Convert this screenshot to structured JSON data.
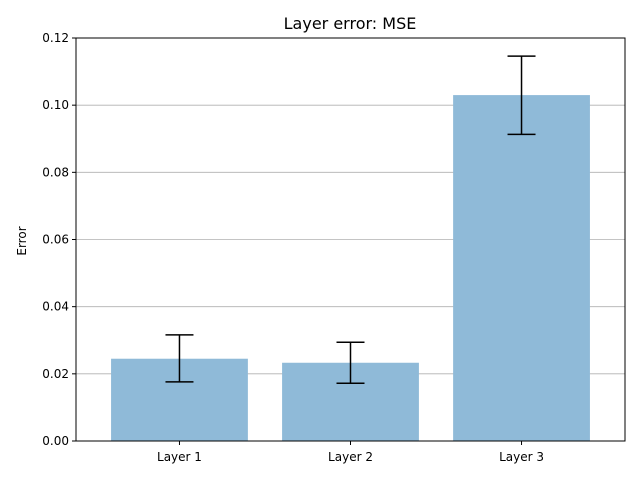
{
  "chart_data": {
    "type": "bar",
    "title": "Layer error: MSE",
    "xlabel": "",
    "ylabel": "Error",
    "categories": [
      "Layer 1",
      "Layer 2",
      "Layer 3"
    ],
    "values": [
      0.0245,
      0.0233,
      0.103
    ],
    "error_bars": [
      {
        "low": 0.0176,
        "high": 0.0316
      },
      {
        "low": 0.0172,
        "high": 0.0294
      },
      {
        "low": 0.0913,
        "high": 0.1146
      }
    ],
    "ylim": [
      0,
      0.12
    ],
    "yticks": [
      0.0,
      0.02,
      0.04,
      0.06,
      0.08,
      0.1,
      0.12
    ],
    "ytick_labels": [
      "0.00",
      "0.02",
      "0.04",
      "0.06",
      "0.08",
      "0.10",
      "0.12"
    ],
    "grid": {
      "y": true,
      "x": false
    },
    "bar_color": "#8fbad8",
    "errorbar_color": "#000000",
    "grid_color": "#b0b0b0"
  }
}
